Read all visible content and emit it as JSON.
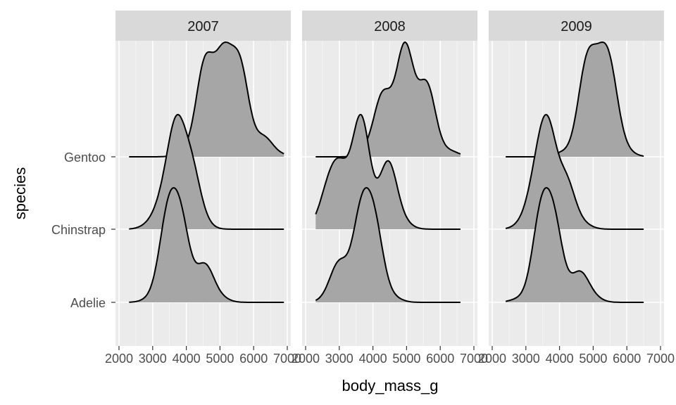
{
  "chart_data": {
    "type": "ridgeline-density",
    "facet_by": "year",
    "x": "body_mass_g",
    "y": "species",
    "xlabel": "body_mass_g",
    "ylabel": "species",
    "xlim": [
      2000,
      7000
    ],
    "xticks": [
      2000,
      3000,
      4000,
      5000,
      6000,
      7000
    ],
    "xtick_labels": [
      "2000",
      "3000",
      "4000",
      "5000",
      "6000",
      "7000"
    ],
    "species_order": [
      "Adelie",
      "Chinstrap",
      "Gentoo"
    ],
    "fill_color": "#a6a6a6",
    "panel_background": "#ebebeb",
    "strip_background": "#d9d9d9",
    "facets": [
      {
        "year": "2007",
        "ridges": [
          {
            "species": "Adelie",
            "range": [
              2300,
              6900
            ],
            "peaks": [
              [
                2950,
                0.04
              ],
              [
                3450,
                1.0
              ],
              [
                3850,
                0.9
              ],
              [
                4550,
                0.45
              ],
              [
                5000,
                0.05
              ]
            ]
          },
          {
            "species": "Chinstrap",
            "range": [
              2300,
              6900
            ],
            "peaks": [
              [
                2900,
                0.04
              ],
              [
                3300,
                0.25
              ],
              [
                3700,
                1.0
              ],
              [
                4150,
                0.6
              ],
              [
                4500,
                0.05
              ]
            ]
          },
          {
            "species": "Gentoo",
            "range": [
              2300,
              6900
            ],
            "peaks": [
              [
                3950,
                0.05
              ],
              [
                4550,
                0.95
              ],
              [
                5100,
                0.95
              ],
              [
                5600,
                0.9
              ],
              [
                6300,
                0.2
              ],
              [
                6800,
                0.02
              ]
            ]
          }
        ]
      },
      {
        "year": "2008",
        "ridges": [
          {
            "species": "Adelie",
            "range": [
              2300,
              6600
            ],
            "peaks": [
              [
                2700,
                0.04
              ],
              [
                3000,
                0.45
              ],
              [
                3650,
                1.0
              ],
              [
                4050,
                0.85
              ],
              [
                4600,
                0.05
              ]
            ]
          },
          {
            "species": "Chinstrap",
            "range": [
              2300,
              6600
            ],
            "peaks": [
              [
                2500,
                0.05
              ],
              [
                2700,
                0.3
              ],
              [
                3050,
                0.45
              ],
              [
                3650,
                1.0
              ],
              [
                4450,
                0.6
              ],
              [
                4900,
                0.05
              ]
            ]
          },
          {
            "species": "Gentoo",
            "range": [
              2300,
              6600
            ],
            "peaks": [
              [
                3900,
                0.05
              ],
              [
                4300,
                0.55
              ],
              [
                4950,
                1.0
              ],
              [
                5600,
                0.65
              ],
              [
                6300,
                0.05
              ]
            ]
          }
        ]
      },
      {
        "year": "2009",
        "ridges": [
          {
            "species": "Adelie",
            "range": [
              2400,
              6500
            ],
            "peaks": [
              [
                2800,
                0.04
              ],
              [
                3450,
                1.0
              ],
              [
                3850,
                0.85
              ],
              [
                4600,
                0.35
              ],
              [
                5000,
                0.05
              ]
            ]
          },
          {
            "species": "Chinstrap",
            "range": [
              2400,
              6500
            ],
            "peaks": [
              [
                2900,
                0.05
              ],
              [
                3300,
                0.45
              ],
              [
                3650,
                1.0
              ],
              [
                4200,
                0.5
              ],
              [
                4700,
                0.05
              ]
            ]
          },
          {
            "species": "Gentoo",
            "range": [
              2400,
              6500
            ],
            "peaks": [
              [
                4100,
                0.05
              ],
              [
                4800,
                1.0
              ],
              [
                5200,
                0.6
              ],
              [
                5500,
                0.85
              ],
              [
                6000,
                0.05
              ]
            ]
          }
        ]
      }
    ]
  }
}
